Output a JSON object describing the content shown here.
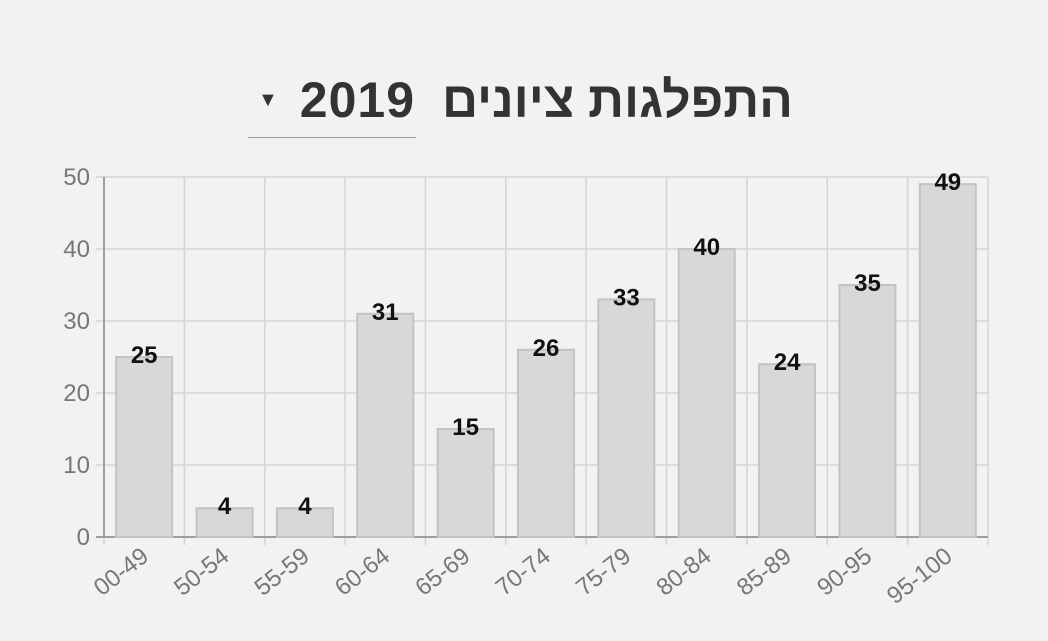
{
  "header": {
    "title": "התפלגות ציונים",
    "year_selected": "2019",
    "caret_icon": "caret-down-icon"
  },
  "chart_data": {
    "type": "bar",
    "categories": [
      "00-49",
      "50-54",
      "55-59",
      "60-64",
      "65-69",
      "70-74",
      "75-79",
      "80-84",
      "85-89",
      "90-95",
      "95-100"
    ],
    "values": [
      25,
      4,
      4,
      31,
      15,
      26,
      33,
      40,
      24,
      35,
      49
    ],
    "ylim": [
      0,
      50
    ],
    "yticks": [
      0,
      10,
      20,
      30,
      40,
      50
    ],
    "grid": true,
    "legend": "none",
    "colors": {
      "bar_fill": "#d8d8d8",
      "bar_stroke": "#c3c3c3",
      "grid": "#d4d4d4",
      "axis": "#9e9e9e",
      "label": "#111111",
      "tick": "#777777"
    }
  }
}
